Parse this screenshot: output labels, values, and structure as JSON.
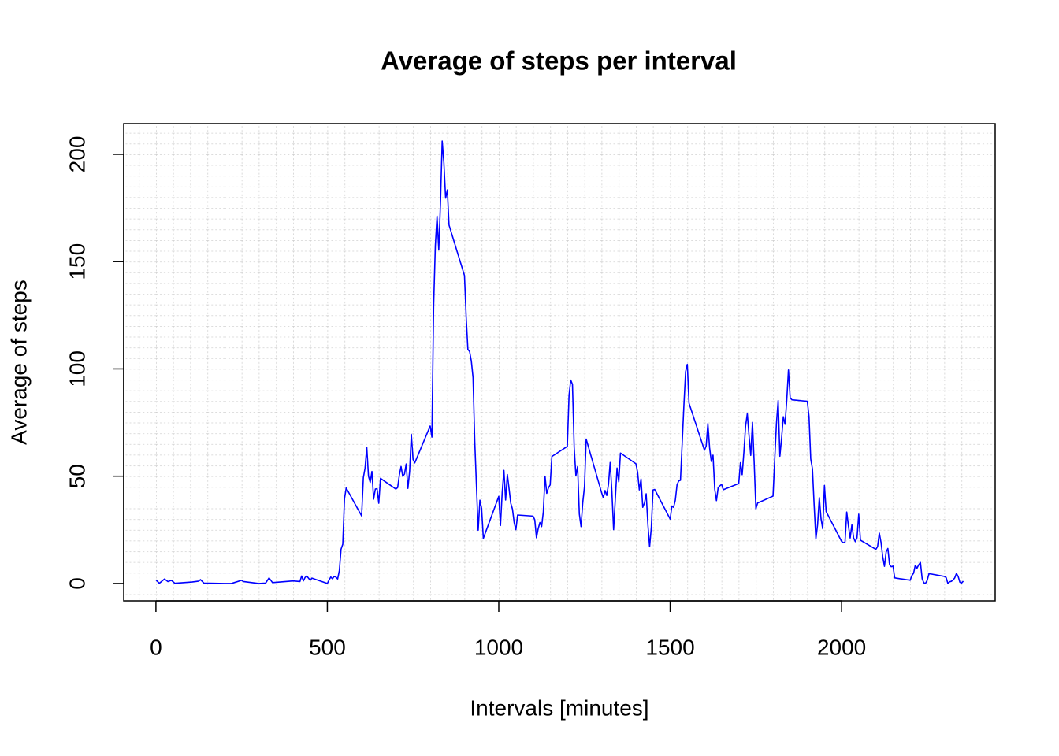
{
  "chart_data": {
    "type": "line",
    "title": "Average of steps per interval",
    "xlabel": "Intervals [minutes]",
    "ylabel": "Average of steps",
    "color": "#0000ff",
    "grid": true,
    "xlim": [
      -94,
      2448
    ],
    "ylim": [
      -8.1,
      214.3
    ],
    "xticks": [
      0,
      500,
      1000,
      1500,
      2000
    ],
    "yticks": [
      0,
      50,
      100,
      150,
      200
    ],
    "x": [
      0,
      10,
      25,
      35,
      45,
      55,
      105,
      125,
      130,
      140,
      200,
      220,
      250,
      255,
      300,
      320,
      330,
      340,
      400,
      420,
      425,
      430,
      435,
      440,
      450,
      455,
      500,
      505,
      510,
      515,
      520,
      525,
      530,
      535,
      540,
      545,
      550,
      555,
      600,
      605,
      610,
      615,
      620,
      625,
      630,
      635,
      640,
      645,
      650,
      655,
      700,
      705,
      710,
      715,
      720,
      725,
      730,
      735,
      740,
      745,
      750,
      755,
      800,
      805,
      810,
      815,
      820,
      825,
      830,
      835,
      840,
      845,
      850,
      855,
      900,
      905,
      910,
      915,
      920,
      925,
      930,
      935,
      940,
      945,
      950,
      955,
      1000,
      1005,
      1010,
      1015,
      1020,
      1025,
      1030,
      1035,
      1040,
      1045,
      1050,
      1055,
      1100,
      1105,
      1110,
      1115,
      1120,
      1125,
      1130,
      1135,
      1140,
      1145,
      1150,
      1155,
      1200,
      1205,
      1210,
      1215,
      1220,
      1225,
      1230,
      1235,
      1240,
      1245,
      1250,
      1255,
      1300,
      1305,
      1310,
      1315,
      1320,
      1325,
      1330,
      1335,
      1340,
      1345,
      1350,
      1355,
      1400,
      1405,
      1410,
      1415,
      1420,
      1425,
      1430,
      1435,
      1440,
      1445,
      1450,
      1455,
      1500,
      1505,
      1510,
      1515,
      1520,
      1525,
      1530,
      1535,
      1540,
      1545,
      1550,
      1555,
      1600,
      1605,
      1610,
      1615,
      1620,
      1625,
      1630,
      1635,
      1640,
      1645,
      1650,
      1655,
      1700,
      1705,
      1710,
      1715,
      1720,
      1725,
      1730,
      1735,
      1740,
      1745,
      1750,
      1755,
      1800,
      1805,
      1810,
      1815,
      1820,
      1825,
      1830,
      1835,
      1840,
      1845,
      1850,
      1855,
      1900,
      1905,
      1910,
      1915,
      1920,
      1925,
      1930,
      1935,
      1940,
      1945,
      1950,
      1955,
      2000,
      2005,
      2010,
      2015,
      2020,
      2025,
      2030,
      2035,
      2040,
      2045,
      2050,
      2055,
      2100,
      2105,
      2110,
      2115,
      2120,
      2125,
      2130,
      2135,
      2140,
      2145,
      2150,
      2155,
      2200,
      2205,
      2210,
      2215,
      2220,
      2225,
      2230,
      2235,
      2240,
      2245,
      2250,
      2255,
      2300,
      2305,
      2310,
      2315,
      2320,
      2325,
      2330,
      2335,
      2340,
      2345,
      2350,
      2355
    ],
    "values": [
      1.7,
      0.1,
      2.1,
      0.9,
      1.5,
      0.1,
      0.7,
      1.1,
      1.8,
      0.2,
      0,
      0,
      1.5,
      0.9,
      0,
      0.2,
      2.6,
      0.4,
      1.2,
      0.9,
      3.5,
      1.2,
      2.8,
      3.5,
      1.5,
      2.5,
      0,
      1.6,
      3,
      2.2,
      3.3,
      3,
      2.1,
      6,
      16,
      18.3,
      39.5,
      44.5,
      31.5,
      49.3,
      53.8,
      63.5,
      50,
      47.1,
      52.2,
      39.3,
      44,
      44.2,
      37.4,
      49,
      44,
      44.7,
      50.5,
      54.5,
      49.9,
      51,
      55.7,
      44.3,
      52.3,
      69.5,
      57.8,
      56.2,
      73.4,
      68.2,
      129.4,
      157.5,
      171.2,
      155.4,
      177.3,
      206.2,
      195.9,
      179.6,
      183.4,
      167,
      143.5,
      124,
      109.1,
      108.1,
      103.7,
      95.9,
      66.2,
      45.2,
      24.8,
      38.8,
      35,
      21,
      40.6,
      27,
      42.4,
      52.7,
      38.9,
      50.8,
      44.3,
      37.4,
      34.7,
      28.3,
      25.1,
      31.9,
      31.4,
      29.7,
      21.3,
      25.5,
      28.4,
      26.5,
      33.4,
      50,
      42,
      44.6,
      46,
      59.2,
      63.9,
      87.7,
      94.8,
      92.8,
      63.4,
      50.2,
      54.5,
      32.4,
      26.5,
      37.7,
      45,
      67.3,
      42.3,
      39.9,
      43.3,
      41,
      46.2,
      56.4,
      42.8,
      25.1,
      39.5,
      53.8,
      47.4,
      60.8,
      55.8,
      51.9,
      43.6,
      48.7,
      35.5,
      37.5,
      41.8,
      27.5,
      17.1,
      26.1,
      43.6,
      43.8,
      30,
      36.1,
      35.5,
      38.8,
      46,
      47.8,
      48.1,
      65.3,
      82.9,
      98.7,
      102.1,
      84,
      62.1,
      64.1,
      74.5,
      63.2,
      56.9,
      59.8,
      43.9,
      38.6,
      44.7,
      45.5,
      46.2,
      43.7,
      46.6,
      56.3,
      50.7,
      61.2,
      73.4,
      79.1,
      68.9,
      59.7,
      75.1,
      56.5,
      34.8,
      37.5,
      40.7,
      58,
      74.7,
      85.3,
      59.3,
      67.8,
      77.7,
      74.2,
      85.3,
      99.5,
      86.6,
      85.6,
      84.9,
      77.8,
      58,
      53.4,
      36.3,
      20.7,
      27.4,
      40,
      30.2,
      25.5,
      45.7,
      33.5,
      19.6,
      19,
      19.3,
      33.3,
      26.8,
      21.2,
      27.3,
      21.3,
      19.5,
      21.3,
      32.3,
      20.2,
      15.9,
      17.2,
      23.5,
      19.2,
      12.5,
      8,
      14.7,
      16.3,
      8.7,
      7.8,
      8.1,
      2.6,
      1.5,
      3.7,
      4.8,
      8.5,
      7.1,
      8.7,
      9.8,
      2.2,
      0.3,
      0.1,
      1.6,
      4.6,
      3.3,
      2.8,
      0,
      0.8,
      1,
      1.6,
      2.6,
      4.7,
      3.3,
      0.6,
      0.2,
      1.1
    ]
  }
}
